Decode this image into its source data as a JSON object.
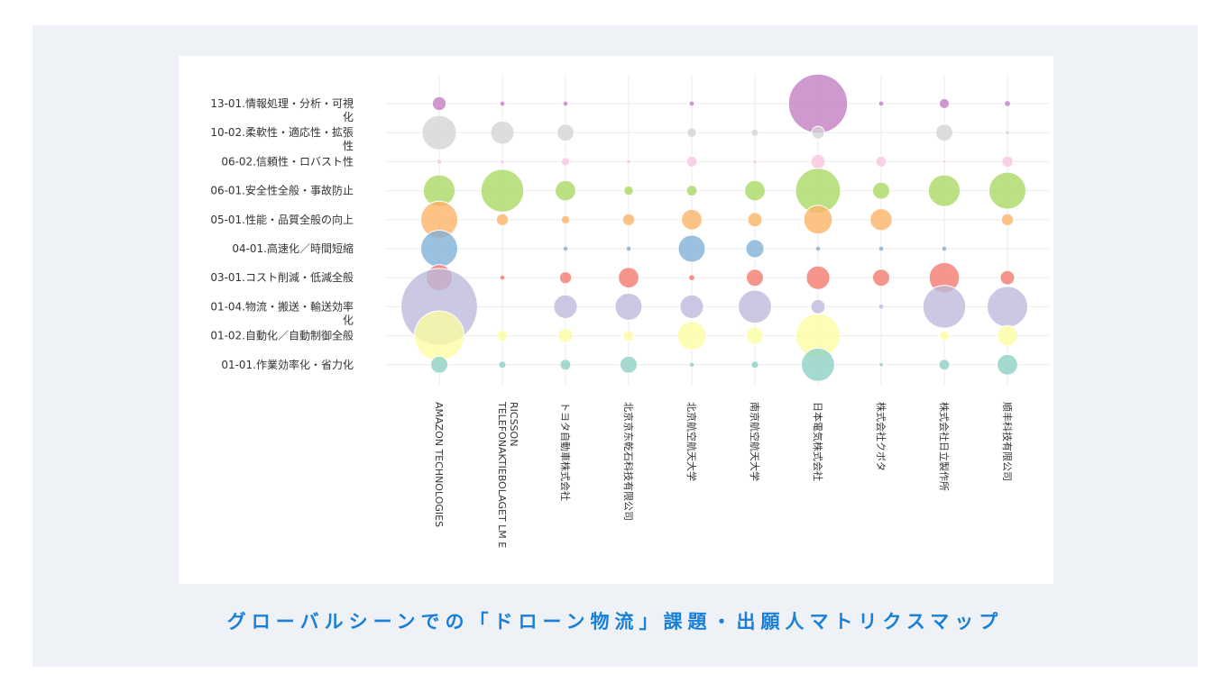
{
  "page": {
    "caption": "グローバルシーンでの「ドローン物流」課題・出願人マトリクスマップ"
  },
  "chart_data": {
    "type": "scatter",
    "grid": true,
    "categories_y": [
      {
        "label_lines": [
          "13-01.情報処理・分析・可視",
          "化"
        ],
        "color": "#c27bc1"
      },
      {
        "label_lines": [
          "10-02.柔軟性・適応性・拡張",
          "性"
        ],
        "color": "#d4d4d4"
      },
      {
        "label_lines": [
          "06-02.信頼性・ロバスト性"
        ],
        "color": "#f8c4df"
      },
      {
        "label_lines": [
          "06-01.安全性全般・事故防止"
        ],
        "color": "#a8d862"
      },
      {
        "label_lines": [
          "05-01.性能・品質全般の向上"
        ],
        "color": "#fdb163"
      },
      {
        "label_lines": [
          "04-01.高速化／時間短縮"
        ],
        "color": "#7eb0d7"
      },
      {
        "label_lines": [
          "03-01.コスト削減・低減全般"
        ],
        "color": "#f4776c"
      },
      {
        "label_lines": [
          "01-04.物流・搬送・輸送効率",
          "化"
        ],
        "color": "#bbb8db"
      },
      {
        "label_lines": [
          "01-02.自動化／自動制御全般"
        ],
        "color": "#fdfca2"
      },
      {
        "label_lines": [
          "01-01.作業効率化・省力化"
        ],
        "color": "#8bd0c3"
      }
    ],
    "categories_x": [
      {
        "label_lines": [
          "AMAZON TECHNOLOGIES"
        ]
      },
      {
        "label_lines": [
          "TELEFONAKTIEBOLAGET LM E",
          "RICSSON"
        ]
      },
      {
        "label_lines": [
          "トヨタ自動車株式会社"
        ]
      },
      {
        "label_lines": [
          "北京京东乾石科技有限公司"
        ]
      },
      {
        "label_lines": [
          "北京航空航天大学"
        ]
      },
      {
        "label_lines": [
          "南京航空航天大学"
        ]
      },
      {
        "label_lines": [
          "日本電気株式会社"
        ]
      },
      {
        "label_lines": [
          "株式会社クボタ"
        ]
      },
      {
        "label_lines": [
          "株式会社日立製作所"
        ]
      },
      {
        "label_lines": [
          "顺丰科技有限公司"
        ]
      }
    ],
    "sizes": [
      [
        2.1,
        0.3,
        0.3,
        0,
        0.3,
        0,
        38,
        0.3,
        1.1,
        0.4
      ],
      [
        13,
        6,
        3.2,
        0,
        1,
        0.6,
        1.8,
        0,
        3.2,
        0.2
      ],
      [
        0.3,
        0.2,
        0.8,
        0.2,
        1.3,
        0.2,
        2.3,
        1.3,
        0.1,
        1.4
      ],
      [
        11,
        20,
        4.6,
        1,
        1.3,
        4.6,
        22,
        3.2,
        11,
        15
      ],
      [
        15,
        1.6,
        0.8,
        1.6,
        4.6,
        2.3,
        9,
        5.3,
        0,
        1.6
      ],
      [
        15,
        0,
        0.3,
        0.3,
        8,
        3.6,
        0.3,
        0.3,
        0.3,
        0
      ],
      [
        7.5,
        0.3,
        1.6,
        4.6,
        0.4,
        3.2,
        6.1,
        3.2,
        10,
        2.3
      ],
      [
        64,
        0,
        6.1,
        8,
        6.1,
        12,
        2.3,
        0.3,
        20,
        18
      ],
      [
        27,
        1.3,
        2.3,
        1.3,
        9,
        3.2,
        21,
        0,
        1.1,
        4.6
      ],
      [
        3.2,
        0.6,
        1.3,
        3.2,
        0.3,
        0.6,
        12,
        0.2,
        1.3,
        4.6
      ]
    ]
  }
}
